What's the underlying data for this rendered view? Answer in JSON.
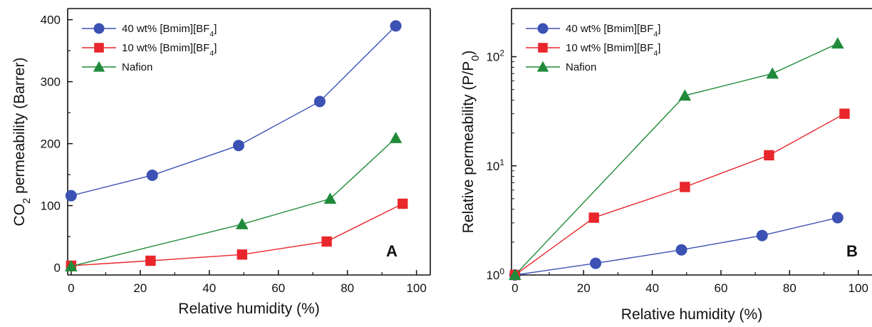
{
  "figure": {
    "colors": {
      "s40": "#3b51b3",
      "s10": "#e8262b",
      "nafion": "#1f8a3a",
      "axis": "#111111"
    }
  },
  "chart_data": [
    {
      "type": "line",
      "panel_label": "A",
      "xlabel": "Relative humidity (%)",
      "ylabel": "CO_2 permeability (Barrer)",
      "xlim": [
        -1,
        104
      ],
      "ylim": [
        -12,
        418
      ],
      "y_scale": "linear",
      "x_ticks": [
        0,
        20,
        40,
        60,
        80,
        100
      ],
      "x_tick_labels": [
        "0",
        "20",
        "40",
        "60",
        "80",
        "100"
      ],
      "y_ticks": [
        0,
        100,
        200,
        300,
        400
      ],
      "y_tick_labels": [
        "0",
        "100",
        "200",
        "300",
        "400"
      ],
      "legend": "top-left",
      "grid": false,
      "series": [
        {
          "name": "40 wt% [Bmim][BF4]",
          "marker": "circle",
          "x": [
            0,
            23.5,
            48.5,
            72,
            94
          ],
          "y": [
            116,
            149,
            197,
            268,
            390
          ]
        },
        {
          "name": "10 wt% [Bmim][BF4]",
          "marker": "square",
          "x": [
            0,
            23,
            49.5,
            74,
            96
          ],
          "y": [
            3,
            11,
            21,
            42,
            103
          ]
        },
        {
          "name": "Nafion",
          "marker": "triangle",
          "x": [
            0,
            49.5,
            75,
            94
          ],
          "y": [
            2,
            70,
            111,
            209
          ]
        }
      ]
    },
    {
      "type": "line",
      "panel_label": "B",
      "xlabel": "Relative humidity (%)",
      "ylabel": "Relative permeability (P/P_0)",
      "xlim": [
        -1,
        104
      ],
      "ylim": [
        1,
        276
      ],
      "y_scale": "log",
      "x_ticks": [
        0,
        20,
        40,
        60,
        80,
        100
      ],
      "x_tick_labels": [
        "0",
        "20",
        "40",
        "60",
        "80",
        "100"
      ],
      "y_ticks": [
        1,
        10,
        100
      ],
      "y_tick_labels": [
        "10^0",
        "10^1",
        "10^2"
      ],
      "legend": "top-left",
      "grid": false,
      "series": [
        {
          "name": "40 wt% [Bmim][BF4]",
          "marker": "circle",
          "x": [
            0,
            23.5,
            48.5,
            72,
            94
          ],
          "y": [
            1.0,
            1.28,
            1.7,
            2.3,
            3.35
          ]
        },
        {
          "name": "10 wt% [Bmim][BF4]",
          "marker": "square",
          "x": [
            0,
            23,
            49.5,
            74,
            96
          ],
          "y": [
            1.0,
            3.35,
            6.4,
            12.5,
            30
          ]
        },
        {
          "name": "Nafion",
          "marker": "triangle",
          "x": [
            0,
            49.5,
            75,
            94
          ],
          "y": [
            1.0,
            44,
            70,
            132
          ]
        }
      ]
    }
  ]
}
